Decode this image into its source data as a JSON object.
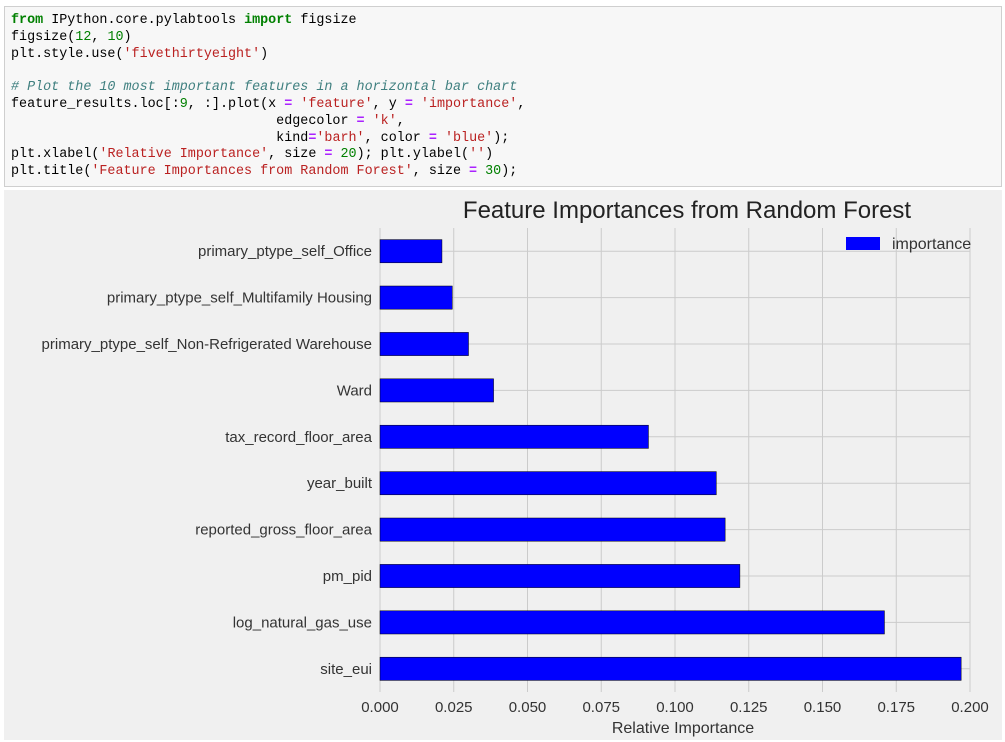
{
  "code_cell": {
    "lines": [
      [
        {
          "t": "from",
          "c": "kw"
        },
        {
          "t": " IPython.core.pylabtools ",
          "c": "pl"
        },
        {
          "t": "import",
          "c": "kw"
        },
        {
          "t": " figsize",
          "c": "pl"
        }
      ],
      [
        {
          "t": "figsize(",
          "c": "pl"
        },
        {
          "t": "12",
          "c": "num"
        },
        {
          "t": ", ",
          "c": "pl"
        },
        {
          "t": "10",
          "c": "num"
        },
        {
          "t": ")",
          "c": "pl"
        }
      ],
      [
        {
          "t": "plt.style.use(",
          "c": "pl"
        },
        {
          "t": "'fivethirtyeight'",
          "c": "str"
        },
        {
          "t": ")",
          "c": "pl"
        }
      ],
      [
        {
          "t": "",
          "c": "pl"
        }
      ],
      [
        {
          "t": "# Plot the 10 most important features in a horizontal bar chart",
          "c": "cm"
        }
      ],
      [
        {
          "t": "feature_results.loc[:",
          "c": "pl"
        },
        {
          "t": "9",
          "c": "num"
        },
        {
          "t": ", :].plot(x ",
          "c": "pl"
        },
        {
          "t": "=",
          "c": "op"
        },
        {
          "t": " ",
          "c": "pl"
        },
        {
          "t": "'feature'",
          "c": "str"
        },
        {
          "t": ", y ",
          "c": "pl"
        },
        {
          "t": "=",
          "c": "op"
        },
        {
          "t": " ",
          "c": "pl"
        },
        {
          "t": "'importance'",
          "c": "str"
        },
        {
          "t": ",",
          "c": "pl"
        }
      ],
      [
        {
          "t": "                                 edgecolor ",
          "c": "pl"
        },
        {
          "t": "=",
          "c": "op"
        },
        {
          "t": " ",
          "c": "pl"
        },
        {
          "t": "'k'",
          "c": "str"
        },
        {
          "t": ",",
          "c": "pl"
        }
      ],
      [
        {
          "t": "                                 kind",
          "c": "pl"
        },
        {
          "t": "=",
          "c": "op"
        },
        {
          "t": "'barh'",
          "c": "str"
        },
        {
          "t": ", color ",
          "c": "pl"
        },
        {
          "t": "=",
          "c": "op"
        },
        {
          "t": " ",
          "c": "pl"
        },
        {
          "t": "'blue'",
          "c": "str"
        },
        {
          "t": ");",
          "c": "pl"
        }
      ],
      [
        {
          "t": "plt.xlabel(",
          "c": "pl"
        },
        {
          "t": "'Relative Importance'",
          "c": "str"
        },
        {
          "t": ", size ",
          "c": "pl"
        },
        {
          "t": "=",
          "c": "op"
        },
        {
          "t": " ",
          "c": "pl"
        },
        {
          "t": "20",
          "c": "num"
        },
        {
          "t": "); plt.ylabel(",
          "c": "pl"
        },
        {
          "t": "''",
          "c": "str"
        },
        {
          "t": ")",
          "c": "pl"
        }
      ],
      [
        {
          "t": "plt.title(",
          "c": "pl"
        },
        {
          "t": "'Feature Importances from Random Forest'",
          "c": "str"
        },
        {
          "t": ", size ",
          "c": "pl"
        },
        {
          "t": "=",
          "c": "op"
        },
        {
          "t": " ",
          "c": "pl"
        },
        {
          "t": "30",
          "c": "num"
        },
        {
          "t": ");",
          "c": "pl"
        }
      ]
    ]
  },
  "chart_data": {
    "type": "bar",
    "orientation": "horizontal",
    "title": "Feature Importances from Random Forest",
    "xlabel": "Relative Importance",
    "ylabel": "",
    "categories": [
      "site_eui",
      "log_natural_gas_use",
      "pm_pid",
      "reported_gross_floor_area",
      "year_built",
      "tax_record_floor_area",
      "Ward",
      "primary_ptype_self_Non-Refrigerated Warehouse",
      "primary_ptype_self_Multifamily Housing",
      "primary_ptype_self_Office"
    ],
    "series": [
      {
        "name": "importance",
        "values": [
          0.197,
          0.171,
          0.122,
          0.117,
          0.114,
          0.091,
          0.0385,
          0.03,
          0.0245,
          0.021
        ]
      }
    ],
    "xlim": [
      0.0,
      0.2
    ],
    "xticks": [
      "0.000",
      "0.025",
      "0.050",
      "0.075",
      "0.100",
      "0.125",
      "0.150",
      "0.175",
      "0.200"
    ],
    "grid": true,
    "legend": "top-right",
    "colors": {
      "bar": "#0000ff",
      "bar_edge": "#000000",
      "background": "#f0f0f0",
      "grid": "#cbcbcb",
      "text": "#333333"
    }
  }
}
